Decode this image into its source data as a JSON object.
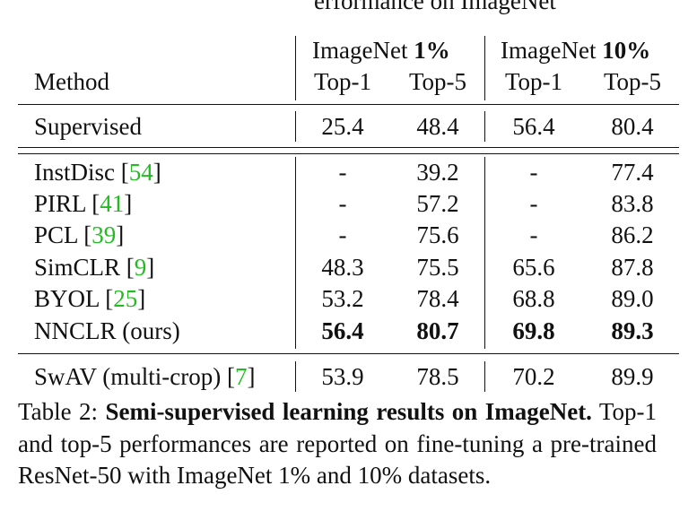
{
  "cutoff_text": "erformance on ImageNet",
  "header": {
    "method": "Method",
    "group1": {
      "prefix": "ImageNet",
      "pct": "1%"
    },
    "group2": {
      "prefix": "ImageNet",
      "pct": "10%"
    },
    "top1": "Top-1",
    "top5": "Top-5"
  },
  "rows": [
    {
      "method": "Supervised",
      "cite": "",
      "open": "",
      "close": "",
      "v1": "25.4",
      "v2": "48.4",
      "v3": "56.4",
      "v4": "80.4"
    },
    {
      "method": "InstDisc ",
      "open": "[",
      "cite": "54",
      "close": "]",
      "v1": "-",
      "v2": "39.2",
      "v3": "-",
      "v4": "77.4"
    },
    {
      "method": "PIRL ",
      "open": "[",
      "cite": "41",
      "close": "]",
      "v1": "-",
      "v2": "57.2",
      "v3": "-",
      "v4": "83.8"
    },
    {
      "method": "PCL ",
      "open": "[",
      "cite": "39",
      "close": "]",
      "v1": "-",
      "v2": "75.6",
      "v3": "-",
      "v4": "86.2"
    },
    {
      "method": "SimCLR ",
      "open": "[",
      "cite": "9",
      "close": "]",
      "v1": "48.3",
      "v2": "75.5",
      "v3": "65.6",
      "v4": "87.8"
    },
    {
      "method": "BYOL ",
      "open": "[",
      "cite": "25",
      "close": "]",
      "v1": "53.2",
      "v2": "78.4",
      "v3": "68.8",
      "v4": "89.0"
    },
    {
      "method": "NNCLR (ours)",
      "open": "",
      "cite": "",
      "close": "",
      "v1": "56.4",
      "v2": "80.7",
      "v3": "69.8",
      "v4": "89.3"
    },
    {
      "method": "SwAV (multi-crop) ",
      "open": "[",
      "cite": "7",
      "close": "]",
      "v1": "53.9",
      "v2": "78.5",
      "v3": "70.2",
      "v4": "89.9"
    }
  ],
  "caption": {
    "label": "Table 2: ",
    "title": "Semi-supervised learning results on ImageNet.",
    "body": " Top-1 and top-5 performances are reported on fine-tuning a pre-trained ResNet-50 with ImageNet 1% and 10% datasets."
  }
}
